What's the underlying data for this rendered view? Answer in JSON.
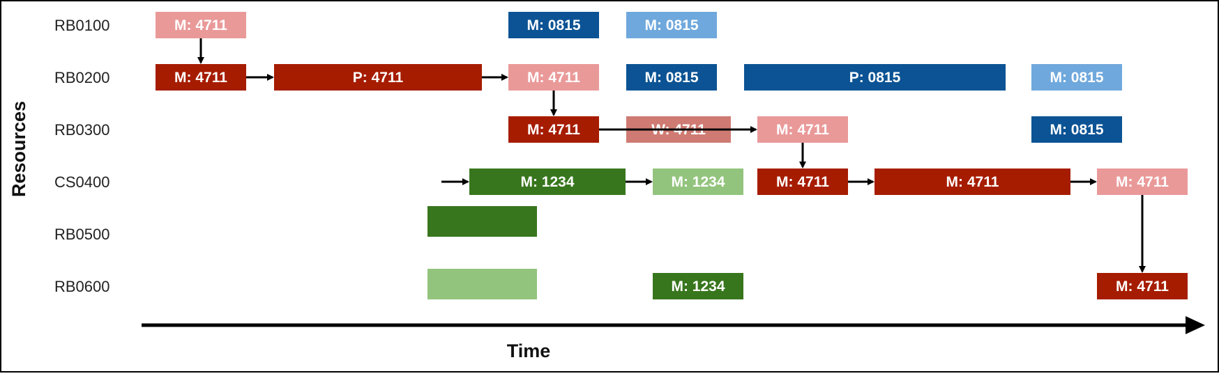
{
  "axis": {
    "x_title": "Time",
    "y_title": "Resources"
  },
  "colors": {
    "red_dark": "#a61c00",
    "red_light": "#ea9999",
    "red_muted": "#cf7b73",
    "blue_dark": "#0b5394",
    "blue_light": "#6fa8dc",
    "green_dark": "#38761d",
    "green_light": "#93c47d",
    "arrow": "#000000"
  },
  "resources": [
    "RB0100",
    "RB0200",
    "RB0300",
    "CS0400",
    "RB0500",
    "RB0600"
  ],
  "tasks": [
    {
      "id": "t1",
      "resource": "RB0100",
      "label": "M: 4711",
      "color": "red_light"
    },
    {
      "id": "t2",
      "resource": "RB0100",
      "label": "M: 0815",
      "color": "blue_dark"
    },
    {
      "id": "t3",
      "resource": "RB0100",
      "label": "M: 0815",
      "color": "blue_light"
    },
    {
      "id": "t4",
      "resource": "RB0200",
      "label": "M: 4711",
      "color": "red_dark"
    },
    {
      "id": "t5",
      "resource": "RB0200",
      "label": "P: 4711",
      "color": "red_dark"
    },
    {
      "id": "t6",
      "resource": "RB0200",
      "label": "M: 4711",
      "color": "red_light"
    },
    {
      "id": "t7",
      "resource": "RB0200",
      "label": "M: 0815",
      "color": "blue_dark"
    },
    {
      "id": "t8",
      "resource": "RB0200",
      "label": "P: 0815",
      "color": "blue_dark"
    },
    {
      "id": "t9",
      "resource": "RB0200",
      "label": "M: 0815",
      "color": "blue_light"
    },
    {
      "id": "t10",
      "resource": "RB0300",
      "label": "M: 4711",
      "color": "red_dark"
    },
    {
      "id": "t11",
      "resource": "RB0300",
      "label": "W: 4711",
      "color": "red_muted"
    },
    {
      "id": "t12",
      "resource": "RB0300",
      "label": "M: 4711",
      "color": "red_light"
    },
    {
      "id": "t13",
      "resource": "RB0300",
      "label": "M: 0815",
      "color": "blue_dark"
    },
    {
      "id": "t14",
      "resource": "CS0400",
      "label": "M: 1234",
      "color": "green_dark"
    },
    {
      "id": "t15",
      "resource": "CS0400",
      "label": "M: 1234",
      "color": "green_light"
    },
    {
      "id": "t16",
      "resource": "CS0400",
      "label": "M: 4711",
      "color": "red_dark"
    },
    {
      "id": "t17",
      "resource": "CS0400",
      "label": "M: 4711",
      "color": "red_dark"
    },
    {
      "id": "t18",
      "resource": "CS0400",
      "label": "M: 4711",
      "color": "red_light"
    },
    {
      "id": "t19",
      "resource": "RB0500",
      "label": "",
      "color": "green_dark"
    },
    {
      "id": "t20",
      "resource": "RB0600",
      "label": "",
      "color": "green_light"
    },
    {
      "id": "t21",
      "resource": "RB0600",
      "label": "M: 1234",
      "color": "green_dark"
    },
    {
      "id": "t22",
      "resource": "RB0600",
      "label": "M: 4711",
      "color": "red_dark"
    }
  ],
  "links": [
    {
      "from": "t1",
      "to": "t4"
    },
    {
      "from": "t4",
      "to": "t5"
    },
    {
      "from": "t5",
      "to": "t6"
    },
    {
      "from": "t6",
      "to": "t10"
    },
    {
      "from": "t10",
      "to": "t12"
    },
    {
      "from": "t12",
      "to": "t16"
    },
    {
      "from": "t16",
      "to": "t17"
    },
    {
      "from": "t17",
      "to": "t18"
    },
    {
      "from": "t18",
      "to": "t22"
    },
    {
      "from": "t14",
      "to": "t15"
    },
    {
      "from": null,
      "to": "t14"
    }
  ]
}
